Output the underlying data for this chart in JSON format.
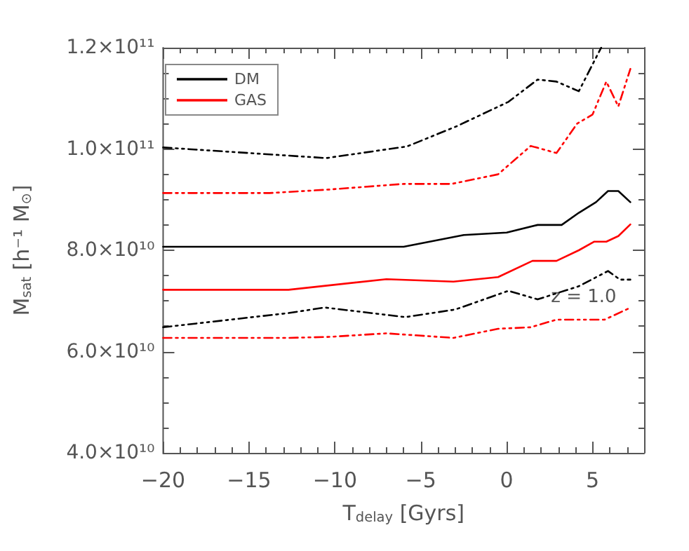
{
  "chart_data": {
    "type": "line",
    "xlabel": "T$_{delay}$ [Gyrs]",
    "ylabel": "M$_{sat}$ [h⁻¹ M$_{⊙}$]",
    "xlim": [
      -20,
      8
    ],
    "xticks": [
      -20,
      -15,
      -10,
      -5,
      0,
      5
    ],
    "ylim": [
      40000000000.0,
      120000000000.0
    ],
    "yticks": [
      {
        "value": 40000000000.0,
        "label": "4.0×10¹⁰"
      },
      {
        "value": 60000000000.0,
        "label": "6.0×10¹⁰"
      },
      {
        "value": 80000000000.0,
        "label": "8.0×10¹⁰"
      },
      {
        "value": 100000000000.0,
        "label": "1.0×10¹¹"
      },
      {
        "value": 120000000000.0,
        "label": "1.2×10¹¹"
      }
    ],
    "grid": false,
    "legend": "top left",
    "marker": "none",
    "annotations": [
      "z = 1.0"
    ],
    "series": [
      {
        "name": "DM",
        "color": "#000000",
        "line_style": "solid",
        "x": [
          -20,
          -6,
          -2.5,
          0,
          1.8,
          3.2,
          4.2,
          5.2,
          5.9,
          6.5,
          7.2
        ],
        "values": [
          80700000000.0,
          80700000000.0,
          83000000000.0,
          83500000000.0,
          85000000000.0,
          85000000000.0,
          87400000000.0,
          89500000000.0,
          91700000000.0,
          91700000000.0,
          89500000000.0
        ]
      },
      {
        "name": "GAS",
        "color": "#ff0000",
        "line_style": "solid",
        "x": [
          -20,
          -12.7,
          -7,
          -3.1,
          -0.5,
          1.5,
          2.9,
          4.2,
          5.1,
          5.8,
          6.5,
          7.2
        ],
        "values": [
          72200000000.0,
          72200000000.0,
          74300000000.0,
          73800000000.0,
          74700000000.0,
          77900000000.0,
          77900000000.0,
          80000000000.0,
          81700000000.0,
          81700000000.0,
          82800000000.0,
          85100000000.0
        ]
      },
      {
        "color": "#000000",
        "line_style": "dashed",
        "x": [
          -20,
          -10.5,
          -5.8,
          -2.9,
          0.1,
          1.8,
          2.9,
          4.2,
          5.5
        ],
        "values": [
          100300000000.0,
          98200000000.0,
          100500000000.0,
          104500000000.0,
          109300000000.0,
          113700000000.0,
          113300000000.0,
          111400000000.0,
          120000000000.0
        ]
      },
      {
        "color": "#ff0000",
        "line_style": "dashed",
        "x": [
          -20,
          -13.8,
          -10.3,
          -6.0,
          -3.2,
          -0.5,
          1.4,
          2.9,
          4.1,
          5.0,
          5.8,
          6.5,
          7.2
        ],
        "values": [
          91300000000.0,
          91300000000.0,
          92000000000.0,
          93100000000.0,
          93100000000.0,
          95000000000.0,
          100600000000.0,
          99200000000.0,
          105000000000.0,
          106800000000.0,
          113300000000.0,
          108400000000.0,
          115800000000.0
        ]
      },
      {
        "color": "#000000",
        "line_style": "dashed",
        "x": [
          -20,
          -12.7,
          -10.6,
          -5.9,
          -3.0,
          0.1,
          1.8,
          2.9,
          4.2,
          5.9,
          6.6,
          7.2
        ],
        "values": [
          64800000000.0,
          67600000000.0,
          68700000000.0,
          66800000000.0,
          68300000000.0,
          72000000000.0,
          70300000000.0,
          71500000000.0,
          72900000000.0,
          75900000000.0,
          74200000000.0,
          74200000000.0
        ]
      },
      {
        "color": "#ff0000",
        "line_style": "dashed",
        "x": [
          -20,
          -12.7,
          -10.3,
          -7.0,
          -3.1,
          -0.5,
          1.4,
          2.9,
          5.7,
          7.1
        ],
        "values": [
          62700000000.0,
          62700000000.0,
          62900000000.0,
          63600000000.0,
          62700000000.0,
          64500000000.0,
          64800000000.0,
          66300000000.0,
          66300000000.0,
          68500000000.0
        ]
      }
    ]
  }
}
